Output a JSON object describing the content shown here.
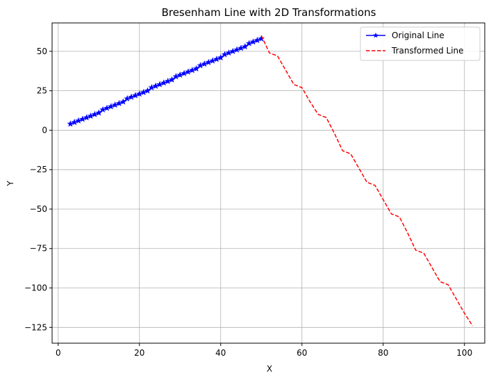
{
  "chart_data": {
    "type": "line",
    "title": "Bresenham Line with 2D Transformations",
    "xlabel": "X",
    "ylabel": "Y",
    "xlim": [
      -1.5,
      105
    ],
    "ylim": [
      -135,
      68
    ],
    "xticks": [
      0,
      20,
      40,
      60,
      80,
      100
    ],
    "yticks": [
      50,
      25,
      0,
      -25,
      -50,
      -75,
      -100,
      -125
    ],
    "grid": true,
    "legend": "top-right",
    "series": [
      {
        "name": "Original Line",
        "color": "#0000ff",
        "style": "solid",
        "marker": "star",
        "x": [
          3,
          4,
          5,
          6,
          7,
          8,
          9,
          10,
          11,
          12,
          13,
          14,
          15,
          16,
          17,
          18,
          19,
          20,
          21,
          22,
          23,
          24,
          25,
          26,
          27,
          28,
          29,
          30,
          31,
          32,
          33,
          34,
          35,
          36,
          37,
          38,
          39,
          40,
          41,
          42,
          43,
          44,
          45,
          46,
          47,
          48,
          49,
          50
        ],
        "y": [
          4,
          5,
          6,
          7,
          8,
          9,
          10,
          11,
          13,
          14,
          15,
          16,
          17,
          18,
          20,
          21,
          22,
          23,
          24,
          25,
          27,
          28,
          29,
          30,
          31,
          32,
          34,
          35,
          36,
          37,
          38,
          39,
          41,
          42,
          43,
          44,
          45,
          46,
          48,
          49,
          50,
          51,
          52,
          53,
          55,
          56,
          57,
          58
        ]
      },
      {
        "name": "Transformed Line",
        "color": "#ff0000",
        "style": "dashed",
        "marker": "none",
        "x": [
          50,
          52,
          54,
          56,
          58,
          60,
          62,
          64,
          66,
          68,
          70,
          72,
          74,
          76,
          78,
          80,
          82,
          84,
          86,
          88,
          90,
          92,
          94,
          96,
          98,
          100,
          102
        ],
        "y": [
          60,
          49,
          47,
          38,
          29,
          27,
          18,
          10,
          8,
          -2,
          -13,
          -15,
          -24,
          -33,
          -35,
          -44,
          -53,
          -55,
          -65,
          -76,
          -78,
          -87,
          -96,
          -98,
          -107,
          -116,
          -124
        ]
      }
    ]
  }
}
